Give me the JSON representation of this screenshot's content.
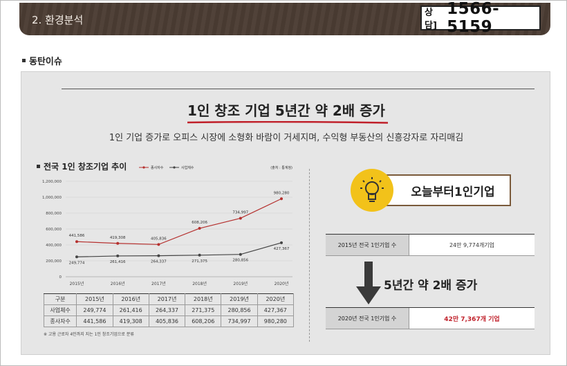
{
  "header": {
    "section_title": "2. 환경분석",
    "phone_prefix": "상담]",
    "phone_number": "1566-5159"
  },
  "sub_heading": "동탄이슈",
  "panel": {
    "title": "1인 창조 기업 5년간 약 2배 증가",
    "subtitle": "1인 기업 증가로 오피스 시장에 소형화 바람이 거세지며, 수익형 부동산의 신흥강자로 자리매김",
    "chart_title": "전국 1인 창조기업 추이",
    "source": "(출처 : 통계청)",
    "table": {
      "headers": [
        "구분",
        "2015년",
        "2016년",
        "2017년",
        "2018년",
        "2019년",
        "2020년"
      ],
      "rows": [
        [
          "사업체수",
          "249,774",
          "261,416",
          "264,337",
          "271,375",
          "280,856",
          "427,367"
        ],
        [
          "종사자수",
          "441,586",
          "419,308",
          "405,836",
          "608,206",
          "734,997",
          "980,280"
        ]
      ]
    },
    "footnote": "※ 고용 근로자 4인까지 지는 1인 창조기업으로 분류",
    "callout": "오늘부터1인기업",
    "info_2015_label": "2015년 전국 1인기업 수",
    "info_2015_value": "24만 9,774개기업",
    "growth_label": "5년간 약 2배 증가",
    "info_2020_label": "2020년 전국 1인기업 수",
    "info_2020_value": "42만 7,367개 기업"
  },
  "colors": {
    "header_bg": "#4b3c33",
    "accent_red": "#c0202a",
    "bulb_yellow": "#f2c21a",
    "series_employees": "#b5302e",
    "series_businesses": "#444444"
  },
  "chart_data": {
    "type": "line",
    "title": "전국 1인 창조기업 추이",
    "x": [
      "2015년",
      "2016년",
      "2017년",
      "2018년",
      "2019년",
      "2020년"
    ],
    "ylim": [
      0,
      1200000
    ],
    "yticks": [
      "0",
      "200,000",
      "400,000",
      "600,000",
      "800,000",
      "1,000,000",
      "1,200,000"
    ],
    "ytick_values": [
      0,
      200000,
      400000,
      600000,
      800000,
      1000000,
      1200000
    ],
    "legend_position": "top",
    "series": [
      {
        "name": "종사자수",
        "values": [
          441586,
          419308,
          405836,
          608206,
          734997,
          980280
        ],
        "labels": [
          "441,586",
          "419,308",
          "405,836",
          "608,206",
          "734,997",
          "980,280"
        ]
      },
      {
        "name": "사업체수",
        "values": [
          249774,
          261416,
          264337,
          271375,
          280856,
          427367
        ],
        "labels": [
          "249,774",
          "261,416",
          "264,337",
          "271,375",
          "280,856",
          "427,367"
        ]
      }
    ]
  }
}
